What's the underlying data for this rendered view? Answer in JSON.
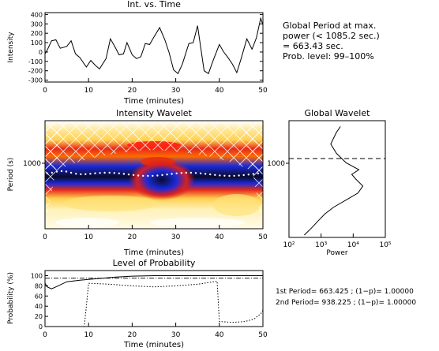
{
  "info_text": {
    "lines": [
      "Global Period at max.",
      "power (< 1085.2 sec.)",
      "= 663.43 sec.",
      "Prob. level: 99–100%"
    ]
  },
  "period_text": {
    "line1": "1st Period= 663.425 ; (1−p)= 1.00000",
    "line2": "2nd Period= 938.225 ; (1−p)= 1.00000"
  },
  "chart_data": [
    {
      "id": "time-series",
      "type": "line",
      "title": "Int. vs. Time",
      "xlabel": "Time (minutes)",
      "ylabel": "Intensity",
      "xlim": [
        0,
        50
      ],
      "ylim": [
        -320,
        420
      ],
      "xticks": [
        0,
        10,
        20,
        30,
        40,
        50
      ],
      "yticks": [
        -300,
        -200,
        -100,
        0,
        100,
        200,
        300,
        400
      ],
      "series": [
        {
          "x": [
            0,
            0.6,
            1.5,
            2.5,
            3.5,
            5,
            6,
            7,
            8,
            9.5,
            10.5,
            11.5,
            12.5,
            14,
            15,
            16,
            17,
            18,
            18.8,
            20,
            21,
            22,
            23,
            24,
            25,
            26.3,
            27.5,
            28.5,
            29.5,
            30.5,
            31.5,
            33,
            34,
            35,
            36.5,
            37.5,
            38.5,
            40,
            41,
            42,
            43,
            44,
            45,
            46.3,
            47.5,
            48.5,
            49.5,
            50
          ],
          "y": [
            -20,
            30,
            120,
            130,
            40,
            60,
            120,
            -20,
            -60,
            -160,
            -90,
            -140,
            -180,
            -70,
            140,
            60,
            -30,
            -20,
            100,
            -30,
            -70,
            -50,
            90,
            80,
            160,
            260,
            130,
            -10,
            -190,
            -230,
            -130,
            90,
            100,
            280,
            -200,
            -230,
            -100,
            80,
            0,
            -60,
            -130,
            -220,
            -70,
            140,
            30,
            150,
            360,
            290
          ]
        }
      ]
    },
    {
      "id": "wavelet-spectrum",
      "type": "heatmap",
      "title": "Intensity Wavelet",
      "xlabel": "Time (minutes)",
      "ylabel": "Period (s)",
      "xlim": [
        0,
        50
      ],
      "xticks": [
        0,
        10,
        20,
        30,
        40,
        50
      ],
      "ytick_labels": [
        "1000"
      ],
      "max_power_period_s": 663.43
    },
    {
      "id": "global-wavelet",
      "type": "line",
      "title": "Global Wavelet",
      "xlabel": "Power",
      "scale": "log",
      "xlim": [
        100,
        100000
      ],
      "xtick_labels": [
        "10²",
        "10³",
        "10⁴",
        "10⁵"
      ],
      "ytick_labels": [
        "1000"
      ],
      "significance_period_s": 1085.2,
      "series": [
        {
          "power": [
            4000,
            3000,
            2000,
            3000,
            6000,
            15000,
            9000,
            12000,
            20000,
            14000,
            6000,
            2500,
            1300,
            800,
            500,
            300
          ],
          "period_frac": [
            0.05,
            0.1,
            0.2,
            0.28,
            0.36,
            0.42,
            0.46,
            0.5,
            0.56,
            0.62,
            0.68,
            0.74,
            0.8,
            0.86,
            0.92,
            0.98
          ]
        }
      ]
    },
    {
      "id": "probability",
      "type": "line",
      "title": "Level of Probability",
      "xlabel": "Time (minutes)",
      "ylabel": "Probability (%)",
      "xlim": [
        0,
        50
      ],
      "ylim": [
        0,
        110
      ],
      "xticks": [
        0,
        10,
        20,
        30,
        40,
        50
      ],
      "yticks": [
        0,
        20,
        40,
        60,
        80,
        100
      ],
      "reference_level": 95,
      "series": [
        {
          "name": "1st Period",
          "x": [
            0,
            0.5,
            1.5,
            3,
            5,
            8,
            12,
            16,
            20,
            25,
            30,
            35,
            40,
            45,
            50
          ],
          "y": [
            85,
            78,
            74,
            80,
            88,
            91,
            94,
            97,
            99,
            100,
            100,
            100,
            100,
            100,
            100
          ]
        },
        {
          "name": "2nd Period",
          "x": [
            0,
            9,
            9.5,
            10,
            15,
            20,
            25,
            30,
            35,
            38,
            39.5,
            40,
            43,
            46,
            48,
            49.5,
            50
          ],
          "y": [
            0,
            0,
            40,
            85,
            83,
            80,
            78,
            80,
            83,
            87,
            89,
            10,
            8,
            10,
            15,
            25,
            32
          ]
        }
      ]
    }
  ]
}
